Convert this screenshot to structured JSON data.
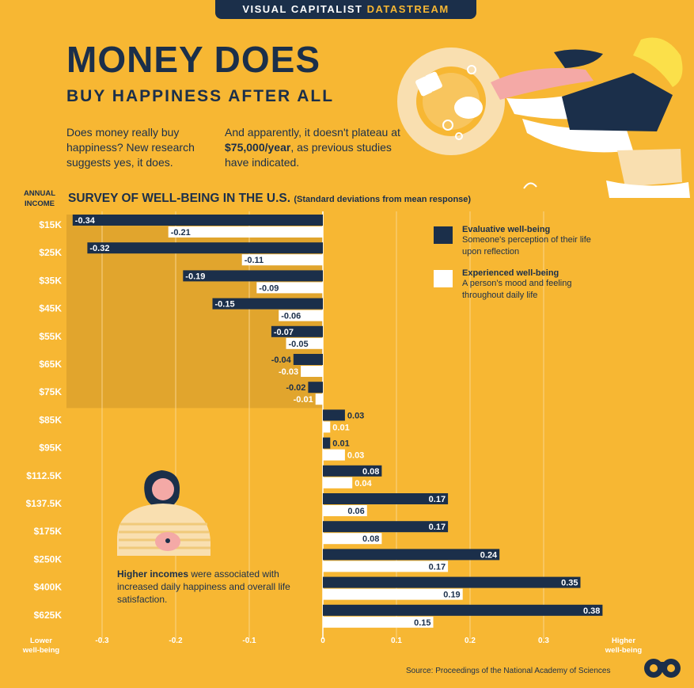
{
  "header": {
    "brand": "VISUAL CAPITALIST",
    "brand_accent": "DATASTREAM"
  },
  "title": "MONEY DOES",
  "subtitle": "BUY HAPPINESS AFTER ALL",
  "intro": {
    "left": "Does money really buy happiness? New research suggests yes, it does.",
    "right_pre": "And apparently, it doesn't plateau at ",
    "right_bold": "$75,000/year",
    "right_post": ", as previous studies have indicated."
  },
  "income_axis_label": "ANNUAL INCOME",
  "note": {
    "bold": "Higher incomes",
    "rest": " were associated with increased daily happiness and overall life satisfaction."
  },
  "source": "Source: Proceedings of the National Academy of Sciences",
  "colors": {
    "background": "#f7b733",
    "navy": "#1b2f4a",
    "white": "#ffffff",
    "shade": "#d99f2c"
  },
  "chart_data": {
    "type": "bar",
    "orientation": "horizontal",
    "title": "SURVEY OF WELL-BEING IN THE U.S.",
    "subtitle": "(Standard deviations from mean response)",
    "categories": [
      "$15K",
      "$25K",
      "$35K",
      "$45K",
      "$55K",
      "$65K",
      "$75K",
      "$85K",
      "$95K",
      "$112.5K",
      "$137.5K",
      "$175K",
      "$250K",
      "$400K",
      "$625K"
    ],
    "series": [
      {
        "name": "Evaluative well-being",
        "description": "Someone's perception of their life upon reflection",
        "color": "#1b2f4a",
        "values": [
          -0.34,
          -0.32,
          -0.19,
          -0.15,
          -0.07,
          -0.04,
          -0.02,
          0.03,
          0.01,
          0.08,
          0.17,
          0.17,
          0.24,
          0.35,
          0.38
        ]
      },
      {
        "name": "Experienced well-being",
        "description": "A person's mood and feeling throughout daily life",
        "color": "#ffffff",
        "values": [
          -0.21,
          -0.11,
          -0.09,
          -0.06,
          -0.05,
          -0.03,
          -0.01,
          0.01,
          0.03,
          0.04,
          0.06,
          0.08,
          0.17,
          0.19,
          0.15
        ]
      }
    ],
    "value_labels": [
      [
        "-0.34",
        "-0.32",
        "-0.19",
        "-0.15",
        "-0.07",
        "-0.04",
        "-0.02",
        "0.03",
        "0.01",
        "0.08",
        "0.17",
        "0.17",
        "0.24",
        "0.35",
        "0.38"
      ],
      [
        "-0.21",
        "-0.11",
        "-0.09",
        "-0.06",
        "-0.05",
        "-0.03",
        "-0.01",
        "0.01",
        "0.03",
        "0.04",
        "0.06",
        "0.08",
        "0.17",
        "0.19",
        "0.15"
      ]
    ],
    "xlim": [
      -0.35,
      0.4
    ],
    "xticks": [
      -0.3,
      -0.2,
      -0.1,
      0,
      0.1,
      0.2,
      0.3
    ],
    "xtick_labels": [
      "-0.3",
      "-0.2",
      "-0.1",
      "0",
      "0.1",
      "0.2",
      "0.3"
    ],
    "x_low_label": "Lower well-being",
    "x_high_label": "Higher well-being",
    "legend": "top-right",
    "grid": true
  }
}
